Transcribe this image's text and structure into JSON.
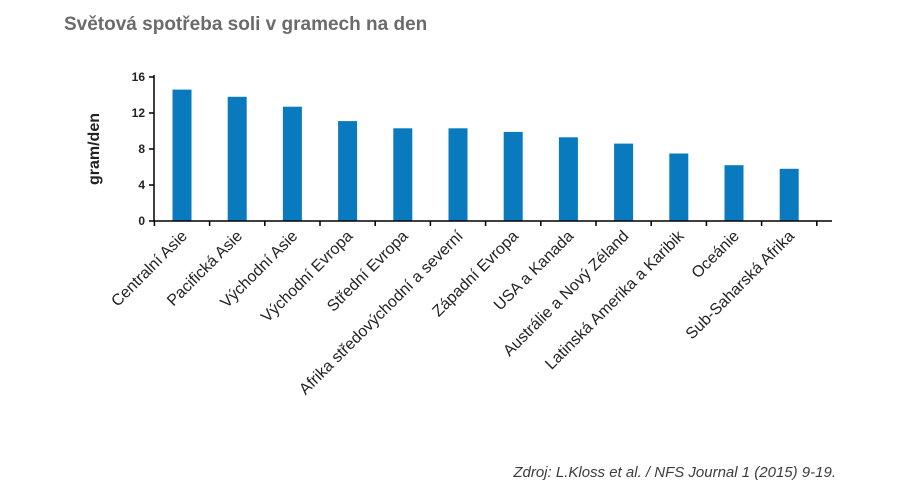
{
  "title": "Světová spotřeba soli v gramech na den",
  "source": "Zdroj: L.Kloss et al. / NFS Journal 1 (2015) 9-19.",
  "chart_data": {
    "type": "bar",
    "title": "Světová spotřeba soli v gramech na den",
    "xlabel": "",
    "ylabel": "gram/den",
    "ylim": [
      0,
      16
    ],
    "yticks": [
      0,
      4,
      8,
      12,
      16
    ],
    "grid": false,
    "bar_color": "#0a7abf",
    "categories": [
      "Centralní Asie",
      "Pacifická Asie",
      "Východní Asie",
      "Východní Evropa",
      "Střední Evropa",
      "Afrika středovýchodní a severní",
      "Západní Evropa",
      "USA a Kanada",
      "Austrálie a Nový Zéland",
      "Latinská Amerika a Karibik",
      "Oceánie",
      "Sub-Saharská Afrika"
    ],
    "values": [
      14.6,
      13.8,
      12.7,
      11.1,
      10.3,
      10.3,
      9.9,
      9.3,
      8.6,
      7.5,
      6.2,
      5.8
    ]
  }
}
